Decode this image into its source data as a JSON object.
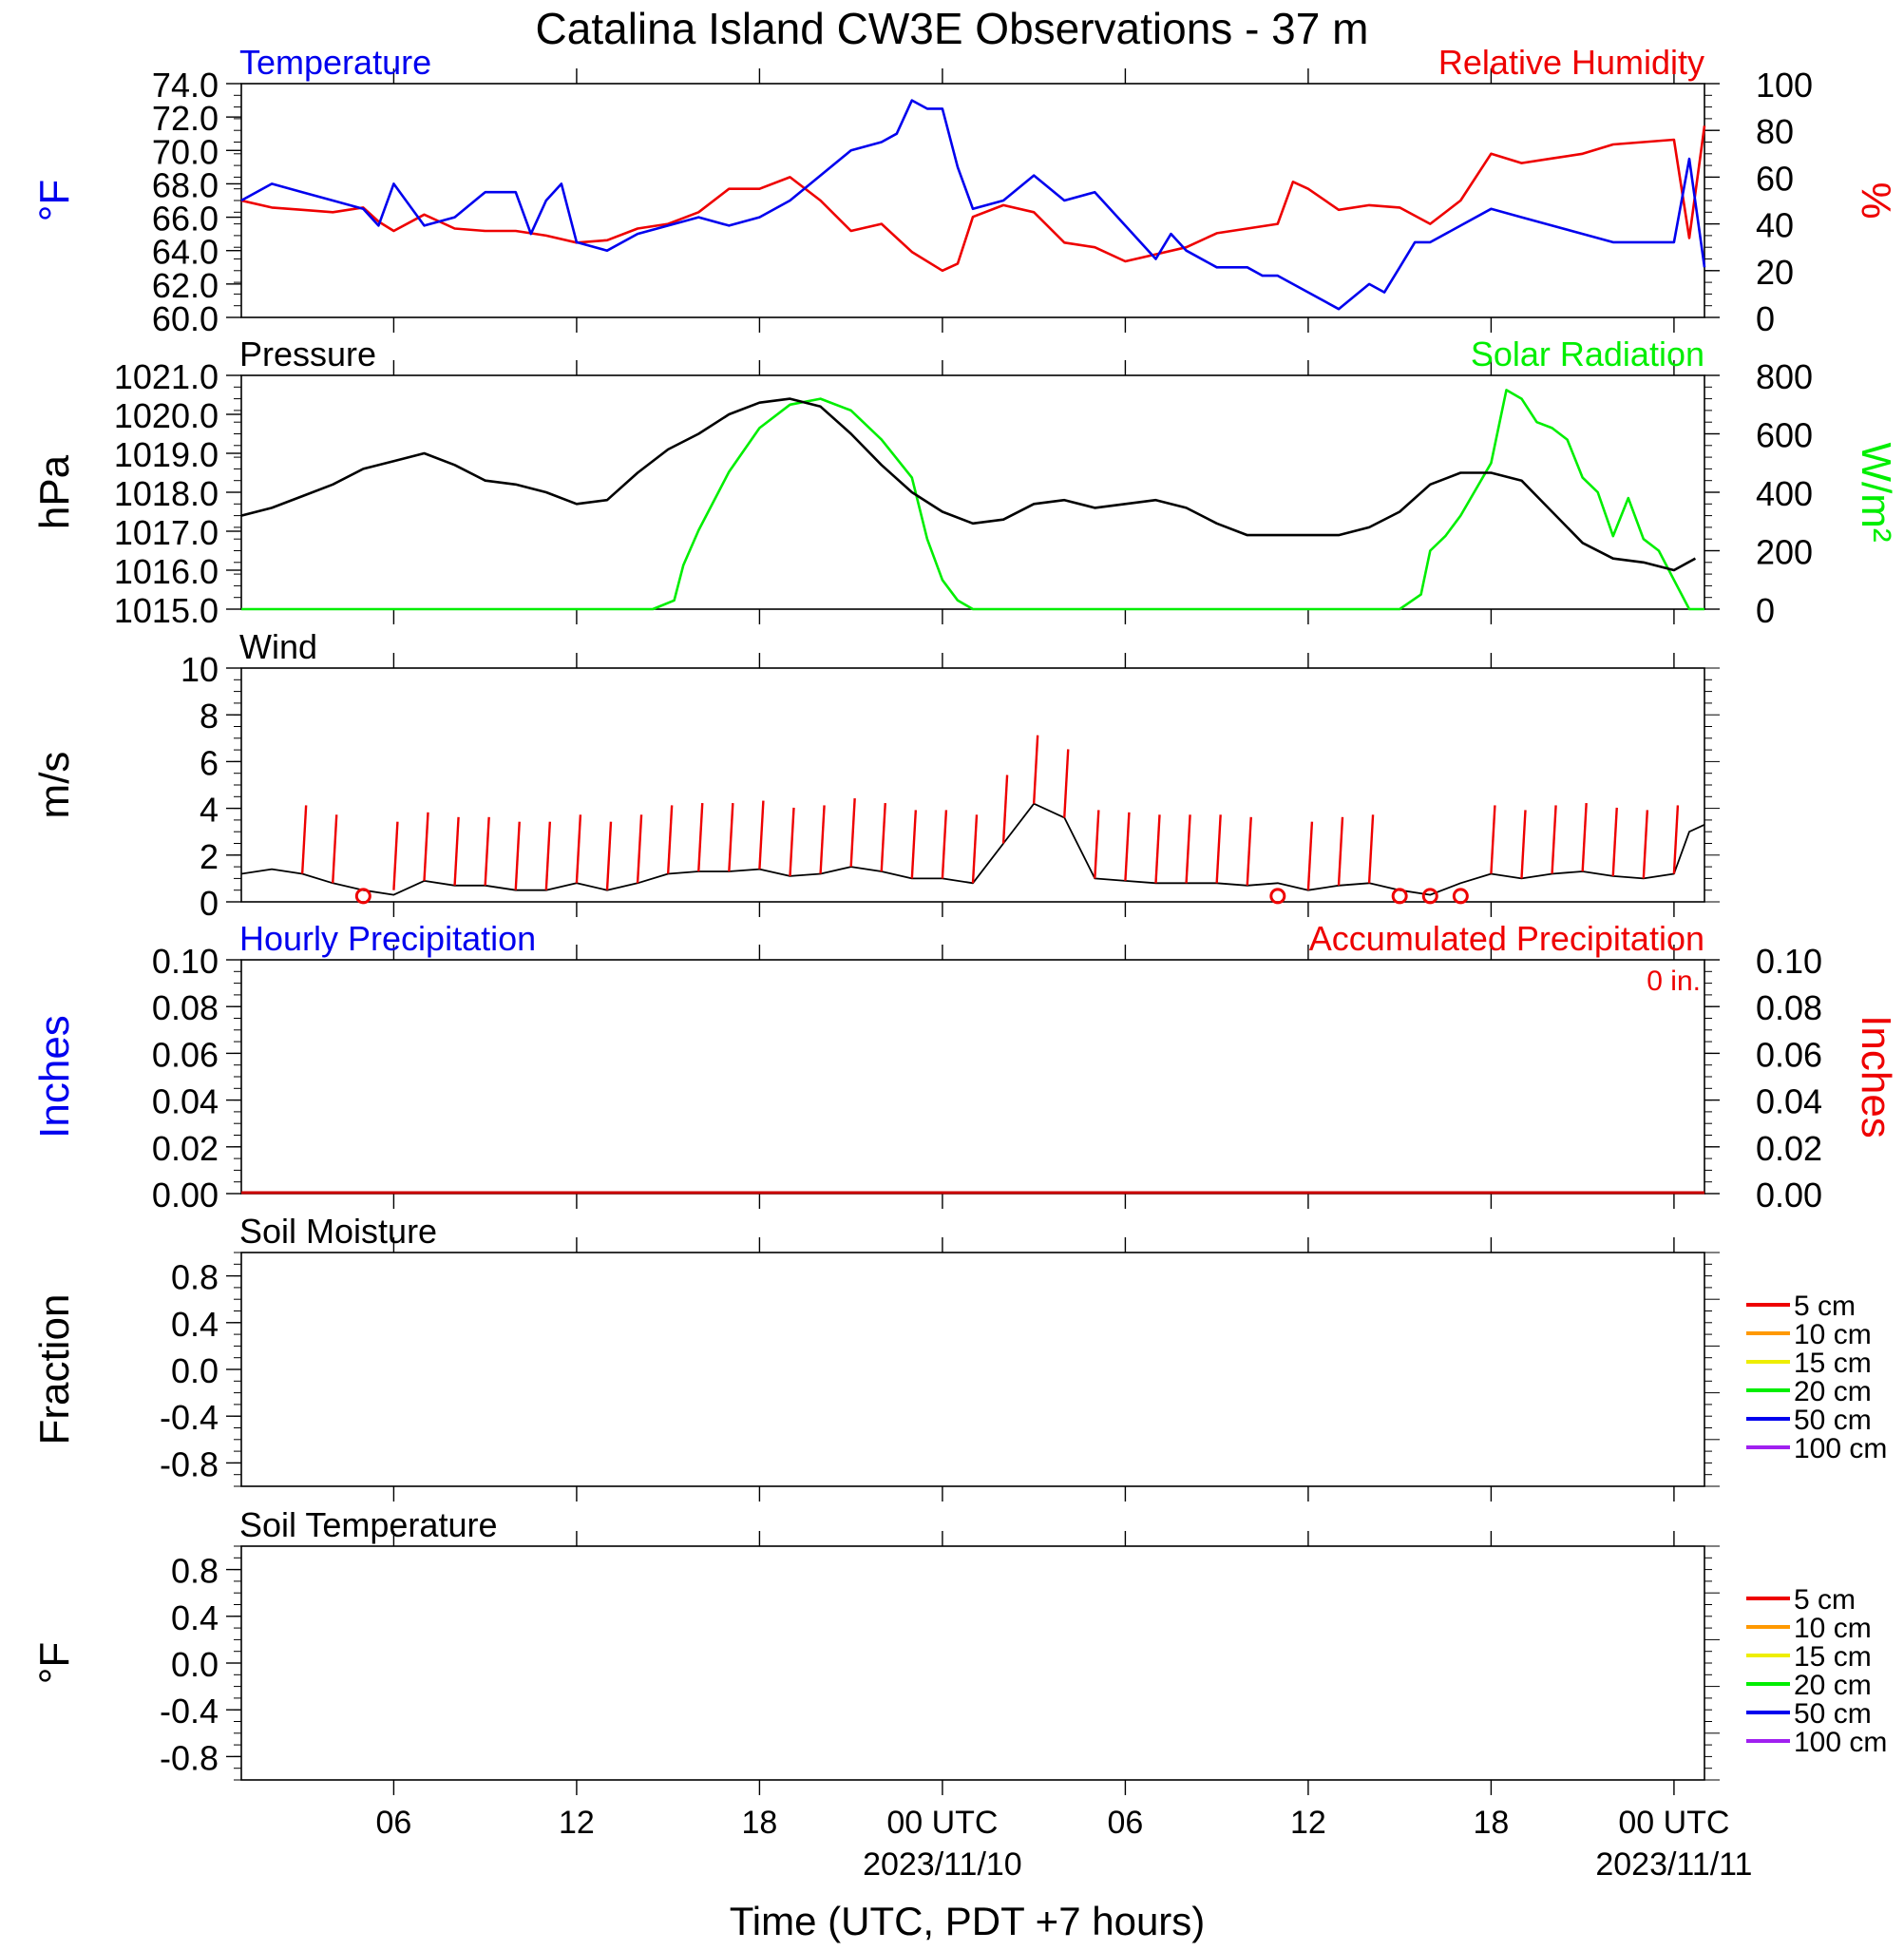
{
  "title": "Catalina Island CW3E Observations - 37 m",
  "xlabel": "Time (UTC, PDT +7 hours)",
  "colors": {
    "blue": "#0000ee",
    "red": "#ee0000",
    "green": "#00ee00",
    "black": "#000000"
  },
  "x_axis": {
    "ticks": [
      {
        "hour": 5,
        "label": "06",
        "sub": ""
      },
      {
        "hour": 11,
        "label": "12",
        "sub": ""
      },
      {
        "hour": 17,
        "label": "18",
        "sub": ""
      },
      {
        "hour": 23,
        "label": "00 UTC",
        "sub": "2023/11/10"
      },
      {
        "hour": 29,
        "label": "06",
        "sub": ""
      },
      {
        "hour": 35,
        "label": "12",
        "sub": ""
      },
      {
        "hour": 41,
        "label": "18",
        "sub": ""
      },
      {
        "hour": 47,
        "label": "00 UTC",
        "sub": "2023/11/11"
      }
    ]
  },
  "panels": {
    "temp_rh": {
      "left_title": "Temperature",
      "right_title": "Relative Humidity",
      "left_unit": "°F",
      "right_unit": "%",
      "left_ticks": [
        "60.0",
        "62.0",
        "64.0",
        "66.0",
        "68.0",
        "70.0",
        "72.0",
        "74.0"
      ],
      "right_ticks": [
        "0",
        "20",
        "40",
        "60",
        "80",
        "100"
      ]
    },
    "pressure_solar": {
      "left_title": "Pressure",
      "right_title": "Solar Radiation",
      "left_unit": "hPa",
      "right_unit": "W/m²",
      "left_ticks": [
        "1015.0",
        "1016.0",
        "1017.0",
        "1018.0",
        "1019.0",
        "1020.0",
        "1021.0"
      ],
      "right_ticks": [
        "0",
        "200",
        "400",
        "600",
        "800"
      ]
    },
    "wind": {
      "left_title": "Wind",
      "left_unit": "m/s",
      "left_ticks": [
        "0",
        "2",
        "4",
        "6",
        "8",
        "10"
      ]
    },
    "precip": {
      "left_title": "Hourly Precipitation",
      "right_title": "Accumulated Precipitation",
      "accum_label": "0 in.",
      "left_unit": "Inches",
      "right_unit": "Inches",
      "left_ticks": [
        "0.00",
        "0.02",
        "0.04",
        "0.06",
        "0.08",
        "0.10"
      ],
      "right_ticks": [
        "0.00",
        "0.02",
        "0.04",
        "0.06",
        "0.08",
        "0.10"
      ]
    },
    "soil_moisture": {
      "left_title": "Soil Moisture",
      "left_unit": "Fraction",
      "left_ticks": [
        "-0.8",
        "-0.4",
        "0.0",
        "0.4",
        "0.8"
      ],
      "legend": [
        {
          "label": "5 cm",
          "color": "#ee0000"
        },
        {
          "label": "10 cm",
          "color": "#ff9900"
        },
        {
          "label": "15 cm",
          "color": "#eeee00"
        },
        {
          "label": "20 cm",
          "color": "#00ee00"
        },
        {
          "label": "50 cm",
          "color": "#0000ee"
        },
        {
          "label": "100 cm",
          "color": "#a020f0"
        }
      ]
    },
    "soil_temp": {
      "left_title": "Soil Temperature",
      "left_unit": "°F",
      "left_ticks": [
        "-0.8",
        "-0.4",
        "0.0",
        "0.4",
        "0.8"
      ],
      "legend": [
        {
          "label": "5 cm",
          "color": "#ee0000"
        },
        {
          "label": "10 cm",
          "color": "#ff9900"
        },
        {
          "label": "15 cm",
          "color": "#eeee00"
        },
        {
          "label": "20 cm",
          "color": "#00ee00"
        },
        {
          "label": "50 cm",
          "color": "#0000ee"
        },
        {
          "label": "100 cm",
          "color": "#a020f0"
        }
      ]
    }
  },
  "chart_data": [
    {
      "type": "line",
      "title": "Temperature / Relative Humidity",
      "x_units": "hours since start (2023/11/09 01 UTC)",
      "series": [
        {
          "name": "Temperature",
          "axis": "left",
          "ylim": [
            60,
            74
          ],
          "x": [
            0,
            1,
            2,
            3,
            4,
            4.5,
            5,
            6,
            7,
            8,
            9,
            9.5,
            10,
            10.5,
            11,
            12,
            13,
            14,
            15,
            16,
            17,
            18,
            19,
            20,
            21,
            21.5,
            22,
            22.5,
            23,
            23.5,
            24,
            25,
            26,
            27,
            28,
            29,
            30,
            30.5,
            31,
            32,
            33,
            33.5,
            34,
            35,
            36,
            37,
            37.5,
            38,
            38.5,
            39,
            40,
            41,
            42,
            43,
            44,
            45,
            46,
            47,
            47.5,
            48
          ],
          "y": [
            67,
            68,
            67.5,
            67,
            66.5,
            65.5,
            68,
            65.5,
            66,
            67.5,
            67.5,
            65,
            67,
            68,
            64.5,
            64,
            65,
            65.5,
            66,
            65.5,
            66,
            67,
            68.5,
            70,
            70.5,
            71,
            73,
            72.5,
            72.5,
            69,
            66.5,
            67,
            68.5,
            67,
            67.5,
            65.5,
            63.5,
            65,
            64,
            63,
            63,
            62.5,
            62.5,
            61.5,
            60.5,
            62,
            61.5,
            63,
            64.5,
            64.5,
            65.5,
            66.5,
            66,
            65.5,
            65,
            64.5,
            64.5,
            64.5,
            69.5,
            63
          ]
        },
        {
          "name": "Relative Humidity",
          "axis": "right",
          "ylim": [
            0,
            100
          ],
          "x": [
            0,
            1,
            2,
            3,
            4,
            4.5,
            5,
            6,
            7,
            8,
            9,
            10,
            11,
            12,
            13,
            14,
            15,
            16,
            17,
            18,
            19,
            20,
            21,
            22,
            23,
            23.5,
            24,
            25,
            26,
            27,
            28,
            29,
            30,
            31,
            32,
            33,
            34,
            34.5,
            35,
            36,
            37,
            38,
            39,
            40,
            41,
            42,
            43,
            44,
            45,
            46,
            47,
            47.5,
            48
          ],
          "y": [
            50,
            47,
            46,
            45,
            47,
            41,
            37,
            44,
            38,
            37,
            37,
            35,
            32,
            33,
            38,
            40,
            45,
            55,
            55,
            60,
            50,
            37,
            40,
            28,
            20,
            23,
            43,
            48,
            45,
            32,
            30,
            24,
            27,
            30,
            36,
            38,
            40,
            58,
            55,
            46,
            48,
            47,
            40,
            50,
            70,
            66,
            68,
            70,
            74,
            75,
            76,
            34,
            82
          ]
        }
      ]
    },
    {
      "type": "line",
      "title": "Pressure / Solar Radiation",
      "x_units": "hours since start (2023/11/09 01 UTC)",
      "series": [
        {
          "name": "Pressure",
          "axis": "left",
          "ylim": [
            1015,
            1021
          ],
          "x": [
            0,
            1,
            2,
            3,
            4,
            5,
            6,
            7,
            8,
            9,
            10,
            11,
            12,
            13,
            14,
            15,
            16,
            17,
            18,
            19,
            20,
            21,
            22,
            23,
            24,
            25,
            26,
            27,
            28,
            29,
            30,
            31,
            32,
            33,
            34,
            35,
            36,
            37,
            38,
            39,
            40,
            41,
            42,
            43,
            44,
            45,
            46,
            47,
            47.7
          ],
          "y": [
            1017.4,
            1017.6,
            1017.9,
            1018.2,
            1018.6,
            1018.8,
            1019,
            1018.7,
            1018.3,
            1018.2,
            1018,
            1017.7,
            1017.8,
            1018.5,
            1019.1,
            1019.5,
            1020,
            1020.3,
            1020.4,
            1020.2,
            1019.5,
            1018.7,
            1018,
            1017.5,
            1017.2,
            1017.3,
            1017.7,
            1017.8,
            1017.6,
            1017.7,
            1017.8,
            1017.6,
            1017.2,
            1016.9,
            1016.9,
            1016.9,
            1016.9,
            1017.1,
            1017.5,
            1018.2,
            1018.5,
            1018.5,
            1018.3,
            1017.5,
            1016.7,
            1016.3,
            1016.2,
            1016,
            1016.3
          ]
        },
        {
          "name": "Solar Radiation",
          "axis": "right",
          "ylim": [
            0,
            800
          ],
          "x": [
            0,
            13.5,
            14.2,
            14.5,
            15,
            16,
            17,
            18,
            19,
            20,
            21,
            22,
            22.5,
            23,
            23.5,
            24,
            38,
            38.7,
            39,
            39.5,
            40,
            41,
            41.5,
            42,
            42.5,
            43,
            43.5,
            44,
            44.5,
            45,
            45.5,
            46,
            46.5,
            47,
            47.5,
            48
          ],
          "y": [
            0,
            0,
            30,
            150,
            270,
            470,
            620,
            700,
            720,
            680,
            580,
            450,
            240,
            100,
            30,
            0,
            0,
            50,
            200,
            250,
            320,
            500,
            750,
            720,
            640,
            620,
            580,
            450,
            400,
            250,
            380,
            240,
            200,
            100,
            0,
            0
          ]
        }
      ]
    },
    {
      "type": "line",
      "title": "Wind",
      "x_units": "hours since start (2023/11/09 01 UTC)",
      "series": [
        {
          "name": "Wind",
          "ylim": [
            0,
            10
          ],
          "x": [
            0,
            1,
            2,
            3,
            4,
            5,
            6,
            7,
            8,
            9,
            10,
            11,
            12,
            13,
            14,
            15,
            16,
            17,
            18,
            19,
            20,
            21,
            22,
            23,
            24,
            25,
            26,
            27,
            28,
            29,
            30,
            31,
            32,
            33,
            34,
            35,
            36,
            37,
            38,
            39,
            40,
            41,
            42,
            43,
            44,
            45,
            46,
            47,
            47.5,
            48
          ],
          "y": [
            1.2,
            1.4,
            1.2,
            0.8,
            0.5,
            0.3,
            0.9,
            0.7,
            0.7,
            0.5,
            0.5,
            0.8,
            0.5,
            0.8,
            1.2,
            1.3,
            1.3,
            1.4,
            1.1,
            1.2,
            1.5,
            1.3,
            1.0,
            1.0,
            0.8,
            2.5,
            4.2,
            3.6,
            1.0,
            0.9,
            0.8,
            0.8,
            0.8,
            0.7,
            0.8,
            0.5,
            0.7,
            0.8,
            0.5,
            0.3,
            0.8,
            1.2,
            1.0,
            1.2,
            1.3,
            1.1,
            1.0,
            1.2,
            3.0,
            3.3
          ]
        }
      ],
      "calm_markers_x": [
        4,
        34,
        38,
        39,
        40
      ]
    },
    {
      "type": "line",
      "title": "Precipitation",
      "series": [
        {
          "name": "Hourly Precipitation",
          "values": [
            0
          ],
          "ylim": [
            0,
            0.1
          ]
        },
        {
          "name": "Accumulated Precipitation",
          "values": [
            0
          ],
          "ylim": [
            0,
            0.1
          ]
        }
      ]
    },
    {
      "type": "line",
      "title": "Soil Moisture",
      "series": [],
      "ylim": [
        -1,
        1
      ]
    },
    {
      "type": "line",
      "title": "Soil Temperature",
      "series": [],
      "ylim": [
        -1,
        1
      ]
    }
  ]
}
